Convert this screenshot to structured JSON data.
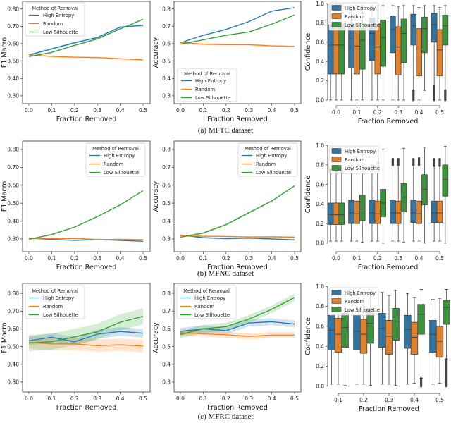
{
  "captions": [
    "(a) MFTC dataset",
    "(b) MFNC dataset",
    "(c) MFRC dataset"
  ],
  "chart_data": [
    {
      "type": "line",
      "dataset": "MFTC",
      "x": [
        0.0,
        0.1,
        0.2,
        0.3,
        0.4,
        0.5
      ],
      "xtick_labels": [
        "0.0",
        "0.1",
        "0.2",
        "0.3",
        "0.4",
        "0.5"
      ],
      "ytick_labels": [
        "0.30",
        "0.40",
        "0.50",
        "0.60",
        "0.70",
        "0.80"
      ],
      "xlabel": "Fraction Removed",
      "ylabel": "F1 Macro",
      "ylim": [
        0.255,
        0.843
      ],
      "grid": false,
      "legend": {
        "title": "Method of Removal",
        "placement": "upper left"
      },
      "series": [
        {
          "name": "High Entropy",
          "color": "#1f77b4",
          "values": [
            0.535,
            0.57,
            0.605,
            0.635,
            0.695,
            0.705
          ],
          "ci": 0.006
        },
        {
          "name": "Random",
          "color": "#ff7f0e",
          "values": [
            0.535,
            0.527,
            0.522,
            0.52,
            0.513,
            0.507
          ],
          "ci": 0.005
        },
        {
          "name": "Low Silhouette",
          "color": "#2ca02c",
          "values": [
            0.525,
            0.55,
            0.59,
            0.627,
            0.685,
            0.74
          ],
          "ci": 0.003
        }
      ]
    },
    {
      "type": "line",
      "dataset": "MFTC",
      "x": [
        0.0,
        0.1,
        0.2,
        0.3,
        0.4,
        0.5
      ],
      "xtick_labels": [
        "0.0",
        "0.1",
        "0.2",
        "0.3",
        "0.4",
        "0.5"
      ],
      "ytick_labels": [
        "0.3",
        "0.4",
        "0.5",
        "0.6",
        "0.7",
        "0.8"
      ],
      "xlabel": "Fraction Removed",
      "ylabel": "Accuracy",
      "ylim": [
        0.255,
        0.843
      ],
      "grid": false,
      "legend": {
        "title": "Method of Removal",
        "placement": "lower left"
      },
      "series": [
        {
          "name": "High Entropy",
          "color": "#1f77b4",
          "values": [
            0.605,
            0.648,
            0.682,
            0.727,
            0.787,
            0.807
          ],
          "ci": 0.003
        },
        {
          "name": "Random",
          "color": "#ff7f0e",
          "values": [
            0.607,
            0.597,
            0.594,
            0.594,
            0.587,
            0.584
          ],
          "ci": 0.006
        },
        {
          "name": "Low Silhouette",
          "color": "#2ca02c",
          "values": [
            0.597,
            0.622,
            0.648,
            0.667,
            0.712,
            0.765
          ],
          "ci": 0.003
        }
      ]
    },
    {
      "type": "box",
      "dataset": "MFTC",
      "categories": [
        "0.0",
        "0.1",
        "0.2",
        "0.3",
        "0.4",
        "0.5"
      ],
      "ytick_labels": [
        "0.0",
        "0.2",
        "0.4",
        "0.6",
        "0.8",
        "1.0"
      ],
      "xlabel": "Fraction Removed",
      "ylabel": "Confidence",
      "ylim": [
        0.0,
        1.0
      ],
      "legend": {
        "title": "",
        "placement": "upper left"
      },
      "series": [
        {
          "name": "High Entropy",
          "color": "#3274a1",
          "stats": [
            [
              0,
              0.27,
              0.57,
              0.78,
              0.99
            ],
            [
              0,
              0.34,
              0.635,
              0.79,
              0.98
            ],
            [
              0,
              0.41,
              0.69,
              0.85,
              0.98
            ],
            [
              0,
              0.49,
              0.73,
              0.87,
              0.98
            ],
            [
              0.1,
              0.57,
              0.77,
              0.89,
              0.98
            ],
            [
              0.15,
              0.6,
              0.78,
              0.9,
              0.98
            ]
          ],
          "outliers": [
            null,
            null,
            null,
            null,
            [
              0,
              0.1
            ],
            [
              0,
              0.15
            ]
          ]
        },
        {
          "name": "Random",
          "color": "#e1812c",
          "stats": [
            [
              0,
              0.27,
              0.57,
              0.79,
              0.99
            ],
            [
              0,
              0.27,
              0.56,
              0.79,
              0.98
            ],
            [
              0,
              0.27,
              0.55,
              0.8,
              0.98
            ],
            [
              0,
              0.26,
              0.55,
              0.76,
              0.97
            ],
            [
              0,
              0.25,
              0.53,
              0.74,
              0.96
            ],
            [
              0,
              0.25,
              0.52,
              0.73,
              0.96
            ]
          ],
          "outliers": [
            null,
            null,
            null,
            null,
            null,
            null
          ]
        },
        {
          "name": "Low Silhouette",
          "color": "#3a923a",
          "stats": [
            [
              0,
              0.27,
              0.57,
              0.79,
              0.99
            ],
            [
              0,
              0.32,
              0.62,
              0.8,
              0.98
            ],
            [
              0,
              0.35,
              0.65,
              0.83,
              0.98
            ],
            [
              0,
              0.39,
              0.69,
              0.84,
              0.98
            ],
            [
              0.1,
              0.49,
              0.74,
              0.86,
              0.98
            ],
            [
              0.1,
              0.57,
              0.77,
              0.88,
              0.98
            ]
          ],
          "outliers": [
            null,
            null,
            null,
            null,
            null,
            [
              0,
              0.1
            ]
          ]
        }
      ]
    },
    {
      "type": "line",
      "dataset": "MFNC",
      "x": [
        0.0,
        0.1,
        0.2,
        0.3,
        0.4,
        0.5
      ],
      "xtick_labels": [
        "0.0",
        "0.1",
        "0.2",
        "0.3",
        "0.4",
        "0.5"
      ],
      "ytick_labels": [
        "0.30",
        "0.40",
        "0.50",
        "0.60",
        "0.70",
        "0.80"
      ],
      "xlabel": "Fraction Removed",
      "ylabel": "F1 Macro",
      "ylim": [
        0.229,
        0.847
      ],
      "grid": false,
      "legend": {
        "title": "Method of Removal",
        "placement": "upper right"
      },
      "series": [
        {
          "name": "High Entropy",
          "color": "#1f77b4",
          "values": [
            0.305,
            0.298,
            0.292,
            0.297,
            0.292,
            0.287
          ],
          "ci": 0.004
        },
        {
          "name": "Random",
          "color": "#ff7f0e",
          "values": [
            0.305,
            0.302,
            0.303,
            0.297,
            0.298,
            0.296
          ],
          "ci": 0.004
        },
        {
          "name": "Low Silhouette",
          "color": "#2ca02c",
          "values": [
            0.298,
            0.325,
            0.366,
            0.425,
            0.49,
            0.57
          ],
          "ci": 0.004
        }
      ]
    },
    {
      "type": "line",
      "dataset": "MFNC",
      "x": [
        0.0,
        0.1,
        0.2,
        0.3,
        0.4,
        0.5
      ],
      "xtick_labels": [
        "0.0",
        "0.1",
        "0.2",
        "0.3",
        "0.4",
        "0.5"
      ],
      "ytick_labels": [
        "0.3",
        "0.4",
        "0.5",
        "0.6",
        "0.7",
        "0.8"
      ],
      "xlabel": "Fraction Removed",
      "ylabel": "Accuracy",
      "ylim": [
        0.229,
        0.847
      ],
      "grid": false,
      "legend": {
        "title": "Method of Removal",
        "placement": "upper right"
      },
      "series": [
        {
          "name": "High Entropy",
          "color": "#1f77b4",
          "values": [
            0.322,
            0.307,
            0.302,
            0.305,
            0.3,
            0.295
          ],
          "ci": 0.004
        },
        {
          "name": "Random",
          "color": "#ff7f0e",
          "values": [
            0.318,
            0.315,
            0.314,
            0.311,
            0.312,
            0.31
          ],
          "ci": 0.004
        },
        {
          "name": "Low Silhouette",
          "color": "#2ca02c",
          "values": [
            0.31,
            0.333,
            0.38,
            0.447,
            0.512,
            0.597
          ],
          "ci": 0.005
        }
      ]
    },
    {
      "type": "box",
      "dataset": "MFNC",
      "categories": [
        "0.0",
        "0.1",
        "0.2",
        "0.3",
        "0.4",
        "0.5"
      ],
      "ytick_labels": [
        "0.0",
        "0.2",
        "0.4",
        "0.6",
        "0.8",
        "1.0"
      ],
      "xlabel": "Fraction Removed",
      "ylabel": "Confidence",
      "ylim": [
        0.0,
        1.0
      ],
      "legend": {
        "title": "",
        "placement": "upper left"
      },
      "series": [
        {
          "name": "High Entropy",
          "color": "#3274a1",
          "stats": [
            [
              0.02,
              0.19,
              0.29,
              0.41,
              0.73
            ],
            [
              0.02,
              0.2,
              0.31,
              0.44,
              0.8
            ],
            [
              0.02,
              0.2,
              0.31,
              0.44,
              0.8
            ],
            [
              0.02,
              0.2,
              0.31,
              0.44,
              0.8
            ],
            [
              0.02,
              0.21,
              0.31,
              0.44,
              0.8
            ],
            [
              0.02,
              0.21,
              0.31,
              0.43,
              0.79
            ]
          ],
          "outliers": [
            [
              0.73,
              0.75
            ],
            null,
            null,
            [
              0.8,
              0.86
            ],
            [
              0.8,
              0.86
            ],
            [
              0.79,
              0.86
            ]
          ]
        },
        {
          "name": "Random",
          "color": "#e1812c",
          "stats": [
            [
              0.02,
              0.19,
              0.29,
              0.41,
              0.73
            ],
            [
              0.02,
              0.2,
              0.3,
              0.43,
              0.8
            ],
            [
              0.02,
              0.2,
              0.3,
              0.43,
              0.82
            ],
            [
              0.02,
              0.2,
              0.31,
              0.43,
              0.8
            ],
            [
              0.02,
              0.2,
              0.3,
              0.43,
              0.8
            ],
            [
              0.02,
              0.21,
              0.31,
              0.43,
              0.79
            ]
          ],
          "outliers": [
            [
              0.73,
              0.75
            ],
            null,
            null,
            [
              0.8,
              0.86
            ],
            [
              0.8,
              0.87
            ],
            [
              0.79,
              0.86
            ]
          ]
        },
        {
          "name": "Low Silhouette",
          "color": "#3a923a",
          "stats": [
            [
              0.02,
              0.19,
              0.29,
              0.41,
              0.73
            ],
            [
              0.01,
              0.23,
              0.35,
              0.49,
              0.9
            ],
            [
              0.0,
              0.27,
              0.41,
              0.55,
              0.96
            ],
            [
              0.01,
              0.32,
              0.47,
              0.61,
              0.97
            ],
            [
              0.0,
              0.39,
              0.55,
              0.7,
              0.98
            ],
            [
              0.0,
              0.48,
              0.65,
              0.8,
              0.99
            ]
          ],
          "outliers": [
            [
              0.73,
              0.75
            ],
            null,
            null,
            null,
            null,
            null
          ]
        }
      ]
    },
    {
      "type": "line",
      "dataset": "MFRC",
      "x": [
        0.0,
        0.1,
        0.2,
        0.3,
        0.4,
        0.5
      ],
      "xtick_labels": [
        "0.0",
        "0.1",
        "0.2",
        "0.3",
        "0.4",
        "0.5"
      ],
      "ytick_labels": [
        "0.30",
        "0.40",
        "0.50",
        "0.60",
        "0.70",
        "0.80"
      ],
      "xlabel": "Fraction Removed",
      "ylabel": "F1 Macro",
      "ylim": [
        0.244,
        0.856
      ],
      "grid": false,
      "legend": {
        "title": "Method of Removal",
        "placement": "upper left"
      },
      "series": [
        {
          "name": "High Entropy",
          "color": "#1f77b4",
          "values": [
            0.532,
            0.553,
            0.527,
            0.57,
            0.585,
            0.575
          ],
          "ci": 0.025
        },
        {
          "name": "Random",
          "color": "#ff7f0e",
          "values": [
            0.523,
            0.515,
            0.515,
            0.505,
            0.51,
            0.503
          ],
          "ci": 0.035
        },
        {
          "name": "Low Silhouette",
          "color": "#2ca02c",
          "values": [
            0.52,
            0.527,
            0.555,
            0.583,
            0.637,
            0.67
          ],
          "ci": 0.045
        }
      ]
    },
    {
      "type": "line",
      "dataset": "MFRC",
      "x": [
        0.0,
        0.1,
        0.2,
        0.3,
        0.4,
        0.5
      ],
      "xtick_labels": [
        "0.0",
        "0.1",
        "0.2",
        "0.3",
        "0.4",
        "0.5"
      ],
      "ytick_labels": [
        "0.3",
        "0.4",
        "0.5",
        "0.6",
        "0.7",
        "0.8"
      ],
      "xlabel": "Fraction Removed",
      "ylabel": "Accuracy",
      "ylim": [
        0.244,
        0.856
      ],
      "grid": false,
      "legend": {
        "title": "Method of Removal",
        "placement": "upper left"
      },
      "series": [
        {
          "name": "High Entropy",
          "color": "#1f77b4",
          "values": [
            0.585,
            0.6,
            0.59,
            0.633,
            0.64,
            0.627
          ],
          "ci": 0.02
        },
        {
          "name": "Random",
          "color": "#ff7f0e",
          "values": [
            0.578,
            0.572,
            0.567,
            0.557,
            0.565,
            0.565
          ],
          "ci": 0.017
        },
        {
          "name": "Low Silhouette",
          "color": "#2ca02c",
          "values": [
            0.568,
            0.6,
            0.612,
            0.655,
            0.71,
            0.777
          ],
          "ci": 0.022
        }
      ]
    },
    {
      "type": "box",
      "dataset": "MFRC",
      "categories": [
        "0.1",
        "0.2",
        "0.3",
        "0.4",
        "0.5"
      ],
      "ytick_labels": [
        "0.0",
        "0.2",
        "0.4",
        "0.6",
        "0.8",
        "1.0"
      ],
      "xlabel": "Fraction Removed",
      "ylabel": "Confidence",
      "ylim": [
        0.0,
        1.0
      ],
      "legend": {
        "title": "",
        "placement": "upper left"
      },
      "series": [
        {
          "name": "High Entropy",
          "color": "#3274a1",
          "stats": [
            [
              0.02,
              0.37,
              0.56,
              0.71,
              0.93
            ],
            [
              0.02,
              0.37,
              0.55,
              0.71,
              0.93
            ],
            [
              0.02,
              0.39,
              0.58,
              0.73,
              0.94
            ],
            [
              0.02,
              0.38,
              0.57,
              0.71,
              0.93
            ],
            [
              0.02,
              0.34,
              0.52,
              0.66,
              0.87
            ]
          ],
          "outliers": [
            null,
            null,
            null,
            null,
            null
          ]
        },
        {
          "name": "Random",
          "color": "#e1812c",
          "stats": [
            [
              0.02,
              0.34,
              0.52,
              0.68,
              0.93
            ],
            [
              0.02,
              0.33,
              0.52,
              0.67,
              0.93
            ],
            [
              0.02,
              0.32,
              0.5,
              0.66,
              0.91
            ],
            [
              0.03,
              0.32,
              0.49,
              0.64,
              0.89
            ],
            [
              0.03,
              0.29,
              0.45,
              0.6,
              0.88
            ]
          ],
          "outliers": [
            null,
            null,
            null,
            null,
            null
          ]
        },
        {
          "name": "Low Silhouette",
          "color": "#3a923a",
          "stats": [
            [
              0.01,
              0.39,
              0.59,
              0.73,
              0.95
            ],
            [
              0.01,
              0.43,
              0.63,
              0.78,
              0.95
            ],
            [
              0.01,
              0.46,
              0.65,
              0.78,
              0.96
            ],
            [
              0.08,
              0.52,
              0.72,
              0.82,
              0.97
            ],
            [
              0.27,
              0.62,
              0.79,
              0.86,
              0.97
            ]
          ],
          "outliers": [
            null,
            null,
            null,
            [
              0,
              0.08
            ],
            [
              0,
              0.27
            ]
          ]
        }
      ]
    }
  ]
}
